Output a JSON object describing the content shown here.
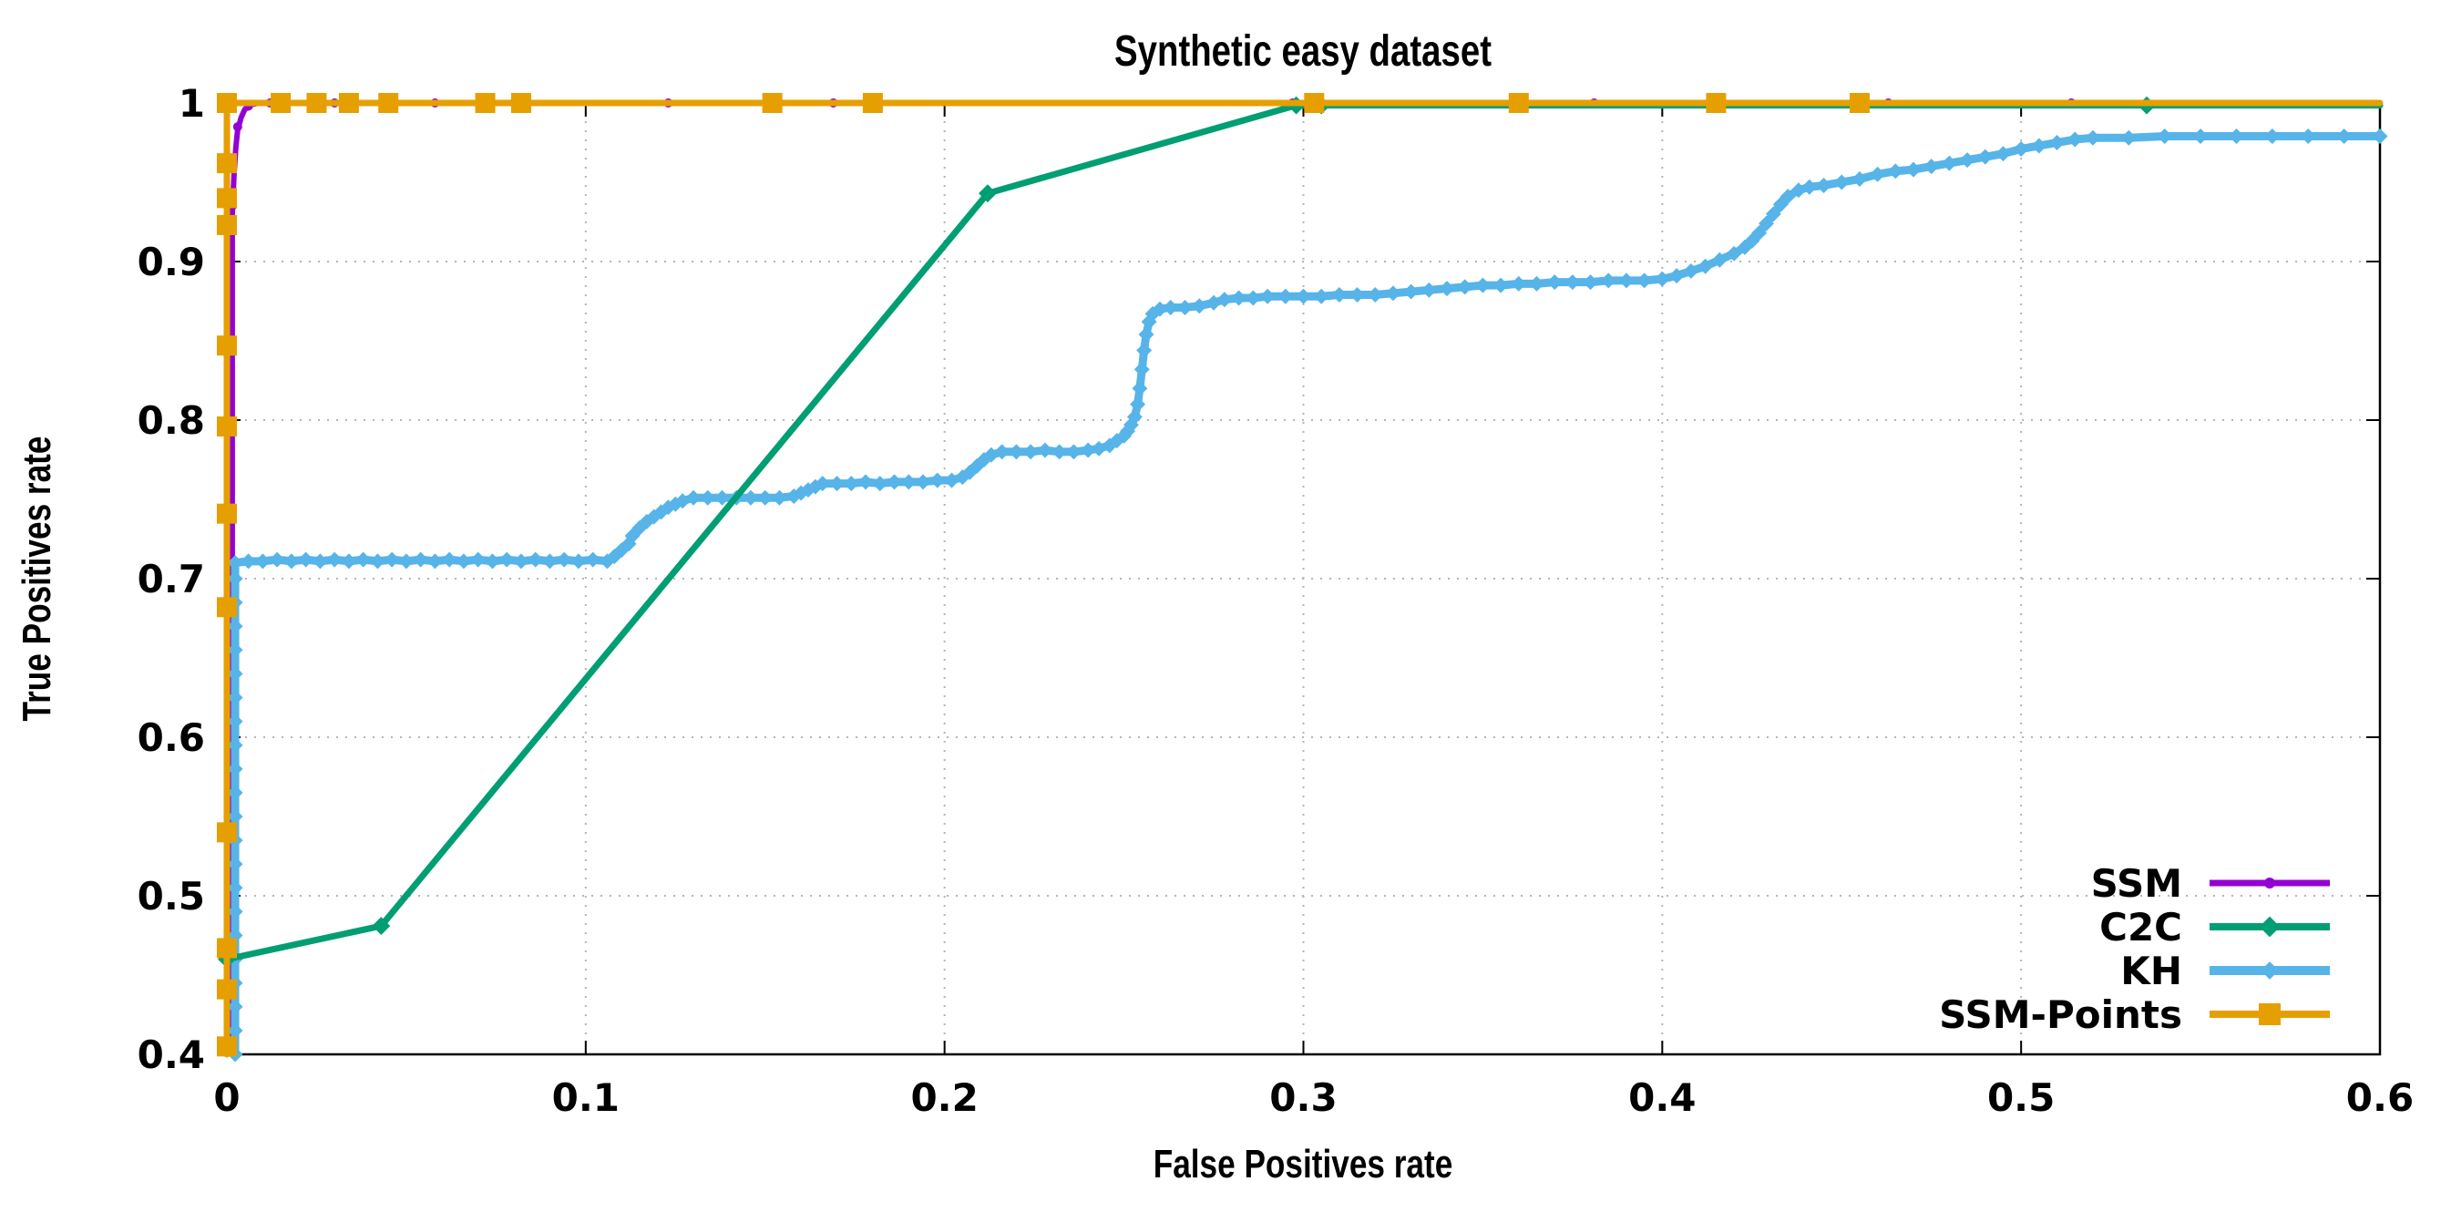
{
  "chart_data": {
    "type": "line",
    "title": "Synthetic easy dataset",
    "xlabel": "False Positives rate",
    "ylabel": "True Positives rate",
    "xlim": [
      0,
      0.6
    ],
    "ylim": [
      0.4,
      1.0
    ],
    "grid": true,
    "legend_position": "bottom-right",
    "xticks": {
      "values": [
        0,
        0.1,
        0.2,
        0.3,
        0.4,
        0.5,
        0.6
      ],
      "labels": [
        "0",
        "0.1",
        "0.2",
        "0.3",
        "0.4",
        "0.5",
        "0.6"
      ]
    },
    "yticks": {
      "values": [
        0.4,
        0.5,
        0.6,
        0.7,
        0.8,
        0.9,
        1.0
      ],
      "labels": [
        "0.4",
        "0.5",
        "0.6",
        "0.7",
        "0.8",
        "0.9",
        "1"
      ]
    },
    "series": [
      {
        "name": "SSM",
        "color": "#9400d3",
        "line_width": 6,
        "marker": "circle",
        "marker_size": 5,
        "points": [
          [
            0.0015,
            0.4
          ],
          [
            0.0015,
            0.93
          ],
          [
            0.002,
            0.955
          ],
          [
            0.0025,
            0.972
          ],
          [
            0.003,
            0.983
          ],
          [
            0.004,
            0.991
          ],
          [
            0.005,
            0.996
          ],
          [
            0.007,
            0.999
          ],
          [
            0.009,
            1.0
          ],
          [
            0.6,
            1.0
          ]
        ],
        "marker_points": [
          [
            0.0008,
            0.43
          ],
          [
            0.0008,
            0.452
          ],
          [
            0.0008,
            0.521
          ],
          [
            0.0008,
            0.559
          ],
          [
            0.0008,
            0.63
          ],
          [
            0.0008,
            0.715
          ],
          [
            0.0008,
            0.74
          ],
          [
            0.0008,
            0.84
          ],
          [
            0.0008,
            0.88
          ],
          [
            0.0015,
            0.935
          ],
          [
            0.003,
            0.985
          ],
          [
            0.006,
            0.998
          ],
          [
            0.012,
            1.0
          ],
          [
            0.03,
            1.0
          ],
          [
            0.033,
            1.0
          ],
          [
            0.058,
            1.0
          ],
          [
            0.08,
            1.0
          ],
          [
            0.123,
            1.0
          ],
          [
            0.169,
            1.0
          ],
          [
            0.297,
            1.0
          ],
          [
            0.302,
            1.0
          ],
          [
            0.381,
            1.0
          ],
          [
            0.463,
            1.0
          ],
          [
            0.514,
            1.0
          ]
        ]
      },
      {
        "name": "KH",
        "color": "#56b4e9",
        "line_width": 9,
        "marker": "diamond",
        "marker_size": 6,
        "marker_points": "all",
        "points": [
          [
            0.0023,
            0.4
          ],
          [
            0.0023,
            0.415
          ],
          [
            0.0023,
            0.43
          ],
          [
            0.0023,
            0.445
          ],
          [
            0.0023,
            0.46
          ],
          [
            0.0023,
            0.475
          ],
          [
            0.0023,
            0.49
          ],
          [
            0.0023,
            0.505
          ],
          [
            0.0023,
            0.52
          ],
          [
            0.0023,
            0.535
          ],
          [
            0.0023,
            0.55
          ],
          [
            0.0023,
            0.565
          ],
          [
            0.0023,
            0.58
          ],
          [
            0.0023,
            0.595
          ],
          [
            0.0023,
            0.61
          ],
          [
            0.0023,
            0.625
          ],
          [
            0.0023,
            0.64
          ],
          [
            0.0023,
            0.655
          ],
          [
            0.0023,
            0.67
          ],
          [
            0.0023,
            0.685
          ],
          [
            0.0023,
            0.7
          ],
          [
            0.0023,
            0.71
          ],
          [
            0.006,
            0.711
          ],
          [
            0.01,
            0.711
          ],
          [
            0.014,
            0.712
          ],
          [
            0.018,
            0.711
          ],
          [
            0.022,
            0.712
          ],
          [
            0.026,
            0.711
          ],
          [
            0.03,
            0.712
          ],
          [
            0.034,
            0.711
          ],
          [
            0.038,
            0.712
          ],
          [
            0.042,
            0.711
          ],
          [
            0.046,
            0.712
          ],
          [
            0.05,
            0.711
          ],
          [
            0.054,
            0.712
          ],
          [
            0.058,
            0.711
          ],
          [
            0.062,
            0.712
          ],
          [
            0.066,
            0.711
          ],
          [
            0.07,
            0.712
          ],
          [
            0.074,
            0.711
          ],
          [
            0.078,
            0.712
          ],
          [
            0.082,
            0.711
          ],
          [
            0.086,
            0.712
          ],
          [
            0.09,
            0.711
          ],
          [
            0.094,
            0.712
          ],
          [
            0.098,
            0.711
          ],
          [
            0.102,
            0.712
          ],
          [
            0.106,
            0.711
          ],
          [
            0.108,
            0.714
          ],
          [
            0.11,
            0.718
          ],
          [
            0.112,
            0.722
          ],
          [
            0.113,
            0.727
          ],
          [
            0.115,
            0.732
          ],
          [
            0.117,
            0.736
          ],
          [
            0.119,
            0.739
          ],
          [
            0.121,
            0.742
          ],
          [
            0.123,
            0.745
          ],
          [
            0.125,
            0.747
          ],
          [
            0.127,
            0.749
          ],
          [
            0.13,
            0.751
          ],
          [
            0.134,
            0.751
          ],
          [
            0.138,
            0.751
          ],
          [
            0.142,
            0.751
          ],
          [
            0.146,
            0.751
          ],
          [
            0.15,
            0.751
          ],
          [
            0.154,
            0.751
          ],
          [
            0.158,
            0.752
          ],
          [
            0.16,
            0.754
          ],
          [
            0.162,
            0.756
          ],
          [
            0.164,
            0.758
          ],
          [
            0.166,
            0.76
          ],
          [
            0.17,
            0.76
          ],
          [
            0.174,
            0.76
          ],
          [
            0.178,
            0.761
          ],
          [
            0.182,
            0.76
          ],
          [
            0.186,
            0.761
          ],
          [
            0.19,
            0.761
          ],
          [
            0.194,
            0.761
          ],
          [
            0.198,
            0.762
          ],
          [
            0.202,
            0.762
          ],
          [
            0.205,
            0.764
          ],
          [
            0.207,
            0.767
          ],
          [
            0.209,
            0.771
          ],
          [
            0.211,
            0.775
          ],
          [
            0.213,
            0.778
          ],
          [
            0.216,
            0.78
          ],
          [
            0.22,
            0.78
          ],
          [
            0.224,
            0.78
          ],
          [
            0.228,
            0.781
          ],
          [
            0.232,
            0.78
          ],
          [
            0.236,
            0.78
          ],
          [
            0.24,
            0.781
          ],
          [
            0.243,
            0.782
          ],
          [
            0.246,
            0.784
          ],
          [
            0.248,
            0.787
          ],
          [
            0.25,
            0.79
          ],
          [
            0.251,
            0.793
          ],
          [
            0.252,
            0.797
          ],
          [
            0.253,
            0.802
          ],
          [
            0.2538,
            0.81
          ],
          [
            0.2544,
            0.82
          ],
          [
            0.255,
            0.832
          ],
          [
            0.2556,
            0.844
          ],
          [
            0.2562,
            0.854
          ],
          [
            0.257,
            0.862
          ],
          [
            0.258,
            0.867
          ],
          [
            0.26,
            0.87
          ],
          [
            0.263,
            0.871
          ],
          [
            0.267,
            0.871
          ],
          [
            0.271,
            0.872
          ],
          [
            0.275,
            0.874
          ],
          [
            0.278,
            0.876
          ],
          [
            0.282,
            0.877
          ],
          [
            0.286,
            0.877
          ],
          [
            0.29,
            0.878
          ],
          [
            0.295,
            0.878
          ],
          [
            0.3,
            0.878
          ],
          [
            0.305,
            0.878
          ],
          [
            0.31,
            0.879
          ],
          [
            0.315,
            0.879
          ],
          [
            0.32,
            0.879
          ],
          [
            0.325,
            0.88
          ],
          [
            0.33,
            0.881
          ],
          [
            0.335,
            0.882
          ],
          [
            0.34,
            0.883
          ],
          [
            0.345,
            0.884
          ],
          [
            0.35,
            0.885
          ],
          [
            0.355,
            0.885
          ],
          [
            0.36,
            0.886
          ],
          [
            0.365,
            0.886
          ],
          [
            0.37,
            0.887
          ],
          [
            0.375,
            0.887
          ],
          [
            0.38,
            0.887
          ],
          [
            0.385,
            0.888
          ],
          [
            0.39,
            0.888
          ],
          [
            0.395,
            0.888
          ],
          [
            0.4,
            0.889
          ],
          [
            0.404,
            0.891
          ],
          [
            0.408,
            0.894
          ],
          [
            0.412,
            0.897
          ],
          [
            0.416,
            0.901
          ],
          [
            0.42,
            0.905
          ],
          [
            0.423,
            0.909
          ],
          [
            0.425,
            0.913
          ],
          [
            0.427,
            0.918
          ],
          [
            0.429,
            0.924
          ],
          [
            0.431,
            0.93
          ],
          [
            0.433,
            0.936
          ],
          [
            0.435,
            0.941
          ],
          [
            0.438,
            0.945
          ],
          [
            0.441,
            0.947
          ],
          [
            0.445,
            0.948
          ],
          [
            0.45,
            0.95
          ],
          [
            0.455,
            0.952
          ],
          [
            0.46,
            0.955
          ],
          [
            0.465,
            0.957
          ],
          [
            0.47,
            0.958
          ],
          [
            0.475,
            0.96
          ],
          [
            0.48,
            0.962
          ],
          [
            0.485,
            0.964
          ],
          [
            0.49,
            0.966
          ],
          [
            0.495,
            0.968
          ],
          [
            0.5,
            0.971
          ],
          [
            0.505,
            0.973
          ],
          [
            0.51,
            0.975
          ],
          [
            0.515,
            0.977
          ],
          [
            0.52,
            0.978
          ],
          [
            0.53,
            0.978
          ],
          [
            0.54,
            0.979
          ],
          [
            0.55,
            0.979
          ],
          [
            0.56,
            0.979
          ],
          [
            0.57,
            0.979
          ],
          [
            0.58,
            0.979
          ],
          [
            0.59,
            0.979
          ],
          [
            0.6,
            0.979
          ]
        ]
      },
      {
        "name": "C2C",
        "color": "#009e73",
        "line_width": 7,
        "marker": "diamond",
        "marker_size": 7,
        "points": [
          [
            0,
            0.46
          ],
          [
            0.043,
            0.481
          ],
          [
            0.212,
            0.943
          ],
          [
            0.298,
            0.9985
          ],
          [
            0.6,
            0.9985
          ]
        ],
        "marker_points": [
          [
            0,
            0.46
          ],
          [
            0.043,
            0.481
          ],
          [
            0.212,
            0.943
          ],
          [
            0.298,
            0.9985
          ],
          [
            0.305,
            0.9985
          ],
          [
            0.535,
            0.9985
          ]
        ]
      },
      {
        "name": "SSM-Points",
        "color": "#e69f00",
        "line_width": 7,
        "marker": "square",
        "marker_size": 11,
        "points": [
          [
            0,
            0.4
          ],
          [
            0,
            1.0
          ],
          [
            0.6,
            1.0
          ]
        ],
        "marker_points": [
          [
            0,
            0.405
          ],
          [
            0,
            0.441
          ],
          [
            0,
            0.467
          ],
          [
            0,
            0.54
          ],
          [
            0,
            0.682
          ],
          [
            0,
            0.741
          ],
          [
            0,
            0.796
          ],
          [
            0,
            0.847
          ],
          [
            0,
            0.923
          ],
          [
            0,
            0.94
          ],
          [
            0,
            0.962
          ],
          [
            0,
            1.0
          ],
          [
            0.015,
            1.0
          ],
          [
            0.025,
            1.0
          ],
          [
            0.034,
            1.0
          ],
          [
            0.045,
            1.0
          ],
          [
            0.072,
            1.0
          ],
          [
            0.082,
            1.0
          ],
          [
            0.152,
            1.0
          ],
          [
            0.18,
            1.0
          ],
          [
            0.303,
            1.0
          ],
          [
            0.36,
            1.0
          ],
          [
            0.415,
            1.0
          ],
          [
            0.455,
            1.0
          ]
        ]
      }
    ]
  },
  "legend": {
    "entries": [
      {
        "label": "SSM",
        "series": "SSM"
      },
      {
        "label": "C2C",
        "series": "C2C"
      },
      {
        "label": "KH",
        "series": "KH"
      },
      {
        "label": "SSM-Points",
        "series": "SSM-Points"
      }
    ]
  },
  "colors": {
    "frame": "#000000",
    "grid": "#b5b5b5",
    "background": "#ffffff"
  }
}
